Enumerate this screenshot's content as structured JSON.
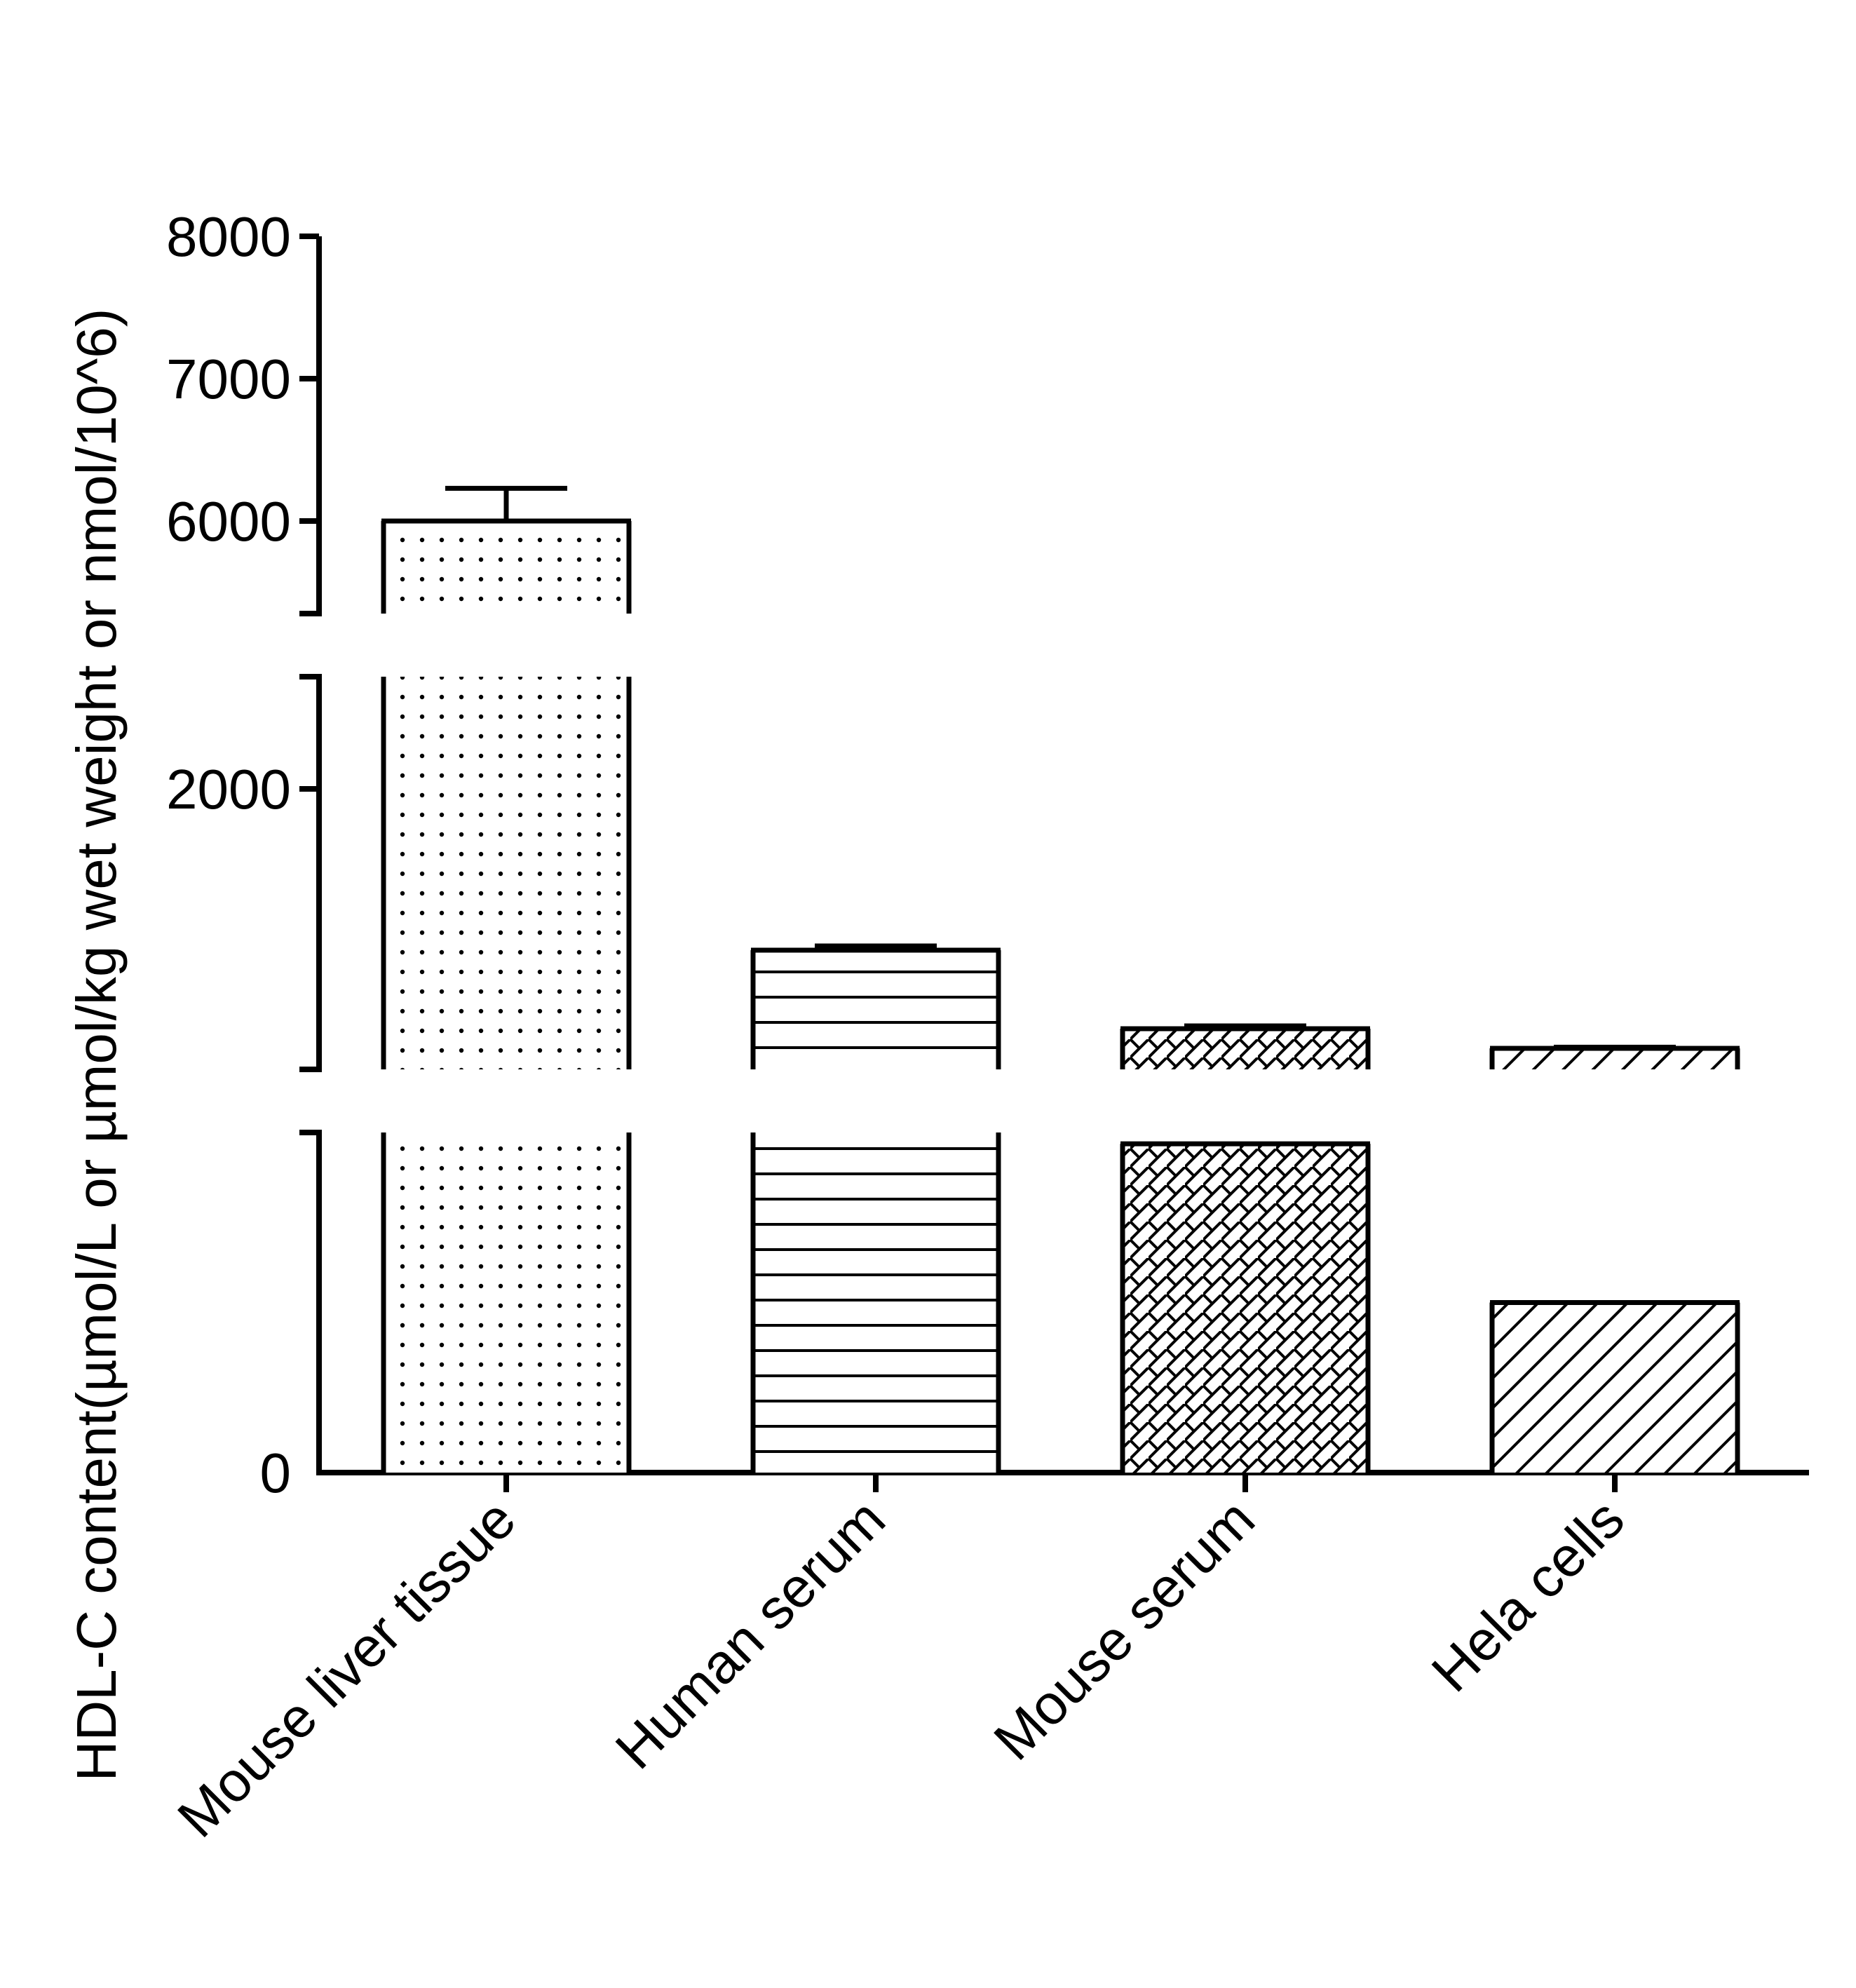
{
  "chart_data": {
    "type": "bar",
    "title": "",
    "ylabel": "HDL-C content(µmol/L or µmol/kg wet weight or nmol/10^6)",
    "xlabel": "",
    "categories": [
      "Mouse liver tissue",
      "Human serum",
      "Mouse serum",
      "Hela cells"
    ],
    "values": [
      6000,
      850,
      290,
      150
    ],
    "errors": [
      230,
      30,
      20,
      8
    ],
    "patterns": [
      "dots",
      "horizontal-lines",
      "crosshatch",
      "diagonal-lines"
    ],
    "y_axis": {
      "broken": true,
      "segments": [
        {
          "range": [
            0,
            300
          ]
        },
        {
          "range": [
            0,
            2800
          ],
          "ticks": [
            2000
          ]
        },
        {
          "range": [
            5350,
            8000
          ],
          "ticks": [
            6000,
            7000,
            8000
          ]
        }
      ],
      "bottom_tick": 0
    },
    "grid": false,
    "legend": "none",
    "colors": {
      "stroke": "#000000",
      "fill": "#ffffff"
    }
  }
}
